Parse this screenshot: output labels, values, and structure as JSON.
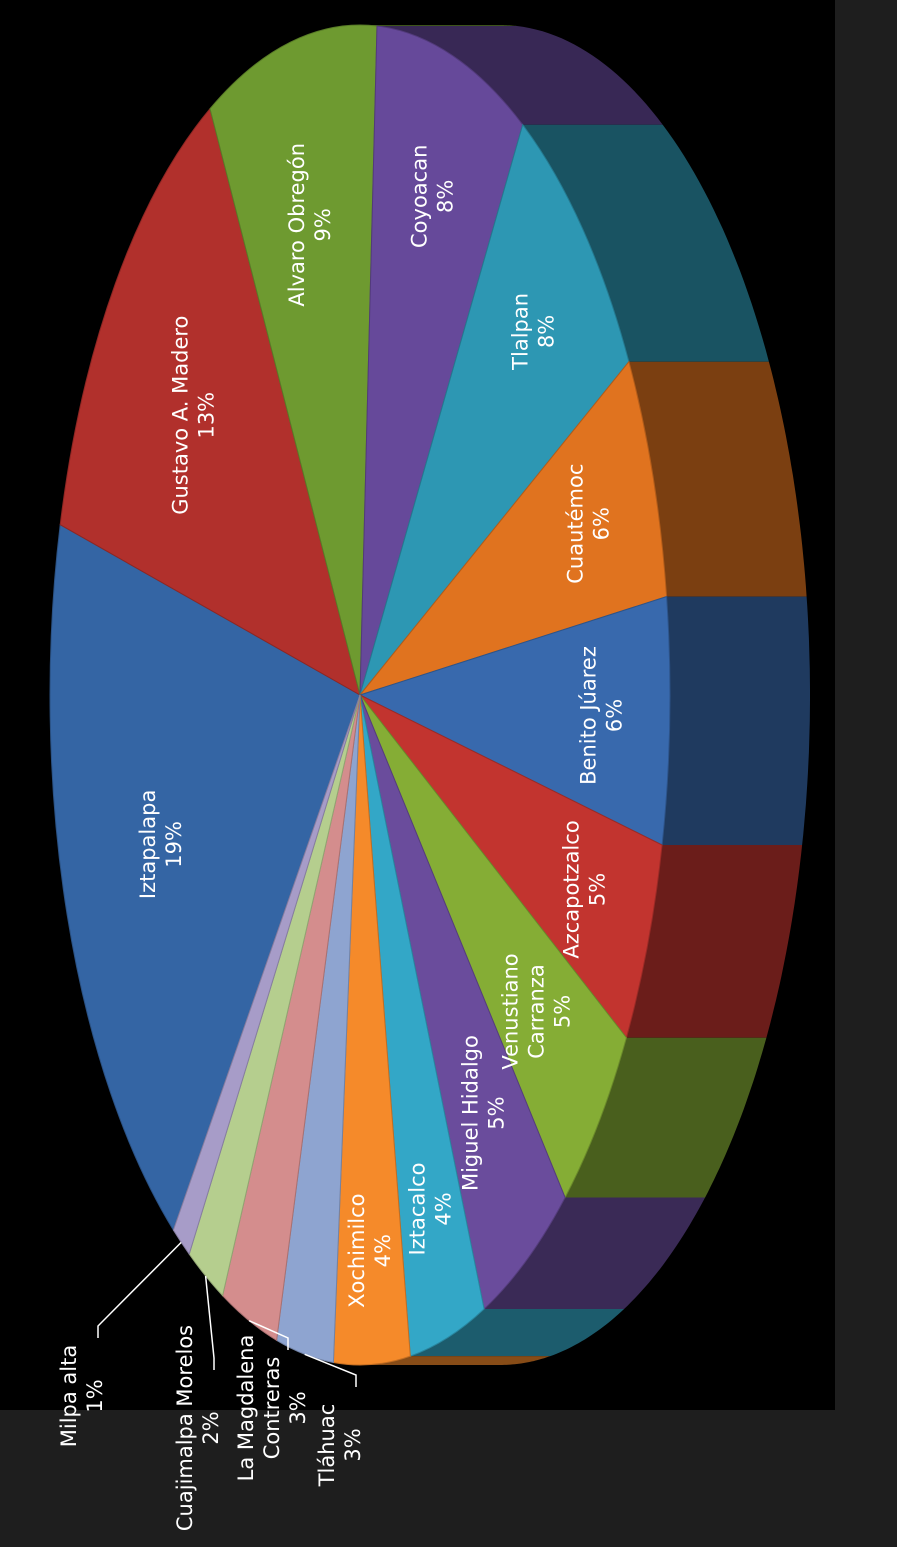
{
  "chart_data": {
    "type": "pie",
    "title": "",
    "categories": [
      "Iztapalapa",
      "Gustavo A. Madero",
      "Alvaro Obregón",
      "Coyoacan",
      "Tlalpan",
      "Cuautémoc",
      "Benito Júarez",
      "Azcapotzalco",
      "Venustiano Carranza",
      "Miguel Hidalgo",
      "Iztacalco",
      "Xochimilco",
      "Tláhuac",
      "La Magdalena Contreras",
      "Cuajimalpa Morelos",
      "Milpa alta"
    ],
    "label_lines": [
      [
        "Iztapalapa"
      ],
      [
        "Gustavo A. Madero"
      ],
      [
        "Alvaro Obregón"
      ],
      [
        "Coyoacan"
      ],
      [
        "Tlalpan"
      ],
      [
        "Cuautémoc"
      ],
      [
        "Benito Júarez"
      ],
      [
        "Azcapotzalco"
      ],
      [
        "Venustiano",
        "Carranza"
      ],
      [
        "Miguel Hidalgo"
      ],
      [
        "Iztacalco"
      ],
      [
        "Xochimilco"
      ],
      [
        "Tláhuac"
      ],
      [
        "La Magdalena",
        "Contreras"
      ],
      [
        "Cuajimalpa Morelos"
      ],
      [
        "Milpa alta"
      ]
    ],
    "values": [
      19,
      13,
      9,
      8,
      8,
      6,
      6,
      5,
      5,
      5,
      4,
      4,
      3,
      3,
      2,
      1
    ],
    "value_labels": [
      "19%",
      "13%",
      "9%",
      "8%",
      "8%",
      "6%",
      "6%",
      "5%",
      "5%",
      "5%",
      "4%",
      "4%",
      "3%",
      "3%",
      "2%",
      "1%"
    ],
    "colors": [
      "#3465a4",
      "#b1302c",
      "#6e9a30",
      "#66499a",
      "#2d97b3",
      "#e0731f",
      "#3869ad",
      "#c2342f",
      "#85ad35",
      "#6a4c9c",
      "#33a7c7",
      "#f58a2a",
      "#8ea4d0",
      "#d48d8d",
      "#b5ce8e",
      "#a79cc8"
    ],
    "legend": "none",
    "label_position": "inside"
  }
}
